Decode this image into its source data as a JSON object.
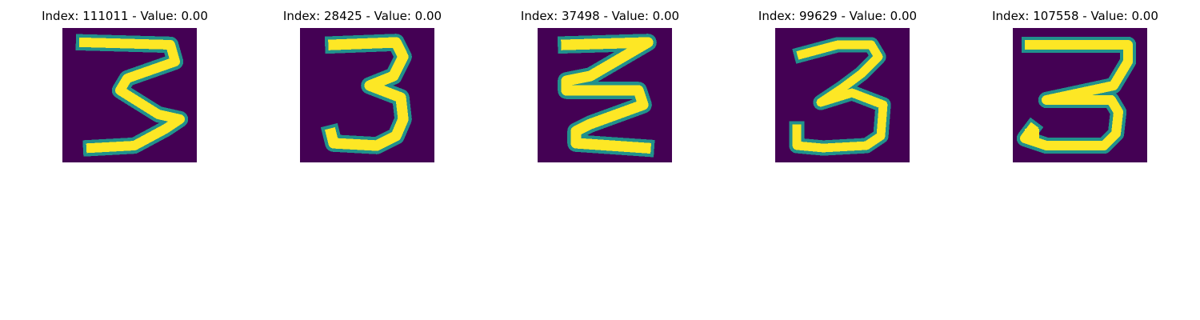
{
  "colormap": {
    "low": "#440154",
    "mid_low": "#31688e",
    "mid": "#21918c",
    "mid_high": "#35b779",
    "high": "#fde725"
  },
  "panels": [
    {
      "title": "Index: 111011 - Value: 0.00",
      "digit": "3"
    },
    {
      "title": "Index: 28425 - Value: 0.00",
      "digit": "3"
    },
    {
      "title": "Index: 37498 - Value: 0.00",
      "digit": "3"
    },
    {
      "title": "Index: 99629 - Value: 0.00",
      "digit": "3"
    },
    {
      "title": "Index: 107558 - Value: 0.00",
      "digit": "3"
    }
  ]
}
